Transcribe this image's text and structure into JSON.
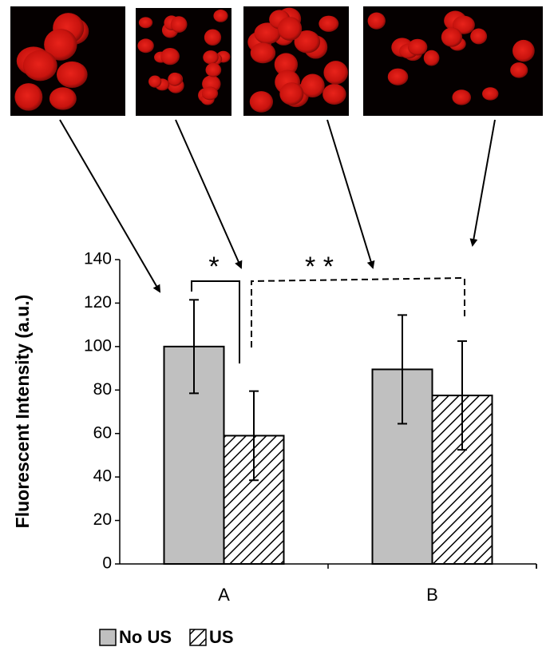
{
  "chart_data": {
    "type": "bar",
    "ylabel": "Fluorescent Intensity (a.u.)",
    "categories": [
      "A",
      "B"
    ],
    "series": [
      {
        "name": "No US",
        "color": "#c0c0c0",
        "pattern": "solid",
        "values": [
          100,
          89.5
        ],
        "errors": [
          21.5,
          25
        ]
      },
      {
        "name": "US",
        "color": "#ffffff",
        "pattern": "hatch",
        "values": [
          59,
          77.5
        ],
        "errors": [
          20.5,
          25
        ]
      }
    ],
    "ylim": [
      0,
      140
    ],
    "yticks": [
      0,
      20,
      40,
      60,
      80,
      100,
      120,
      140
    ],
    "annotations": [
      "*",
      "* *"
    ]
  }
}
